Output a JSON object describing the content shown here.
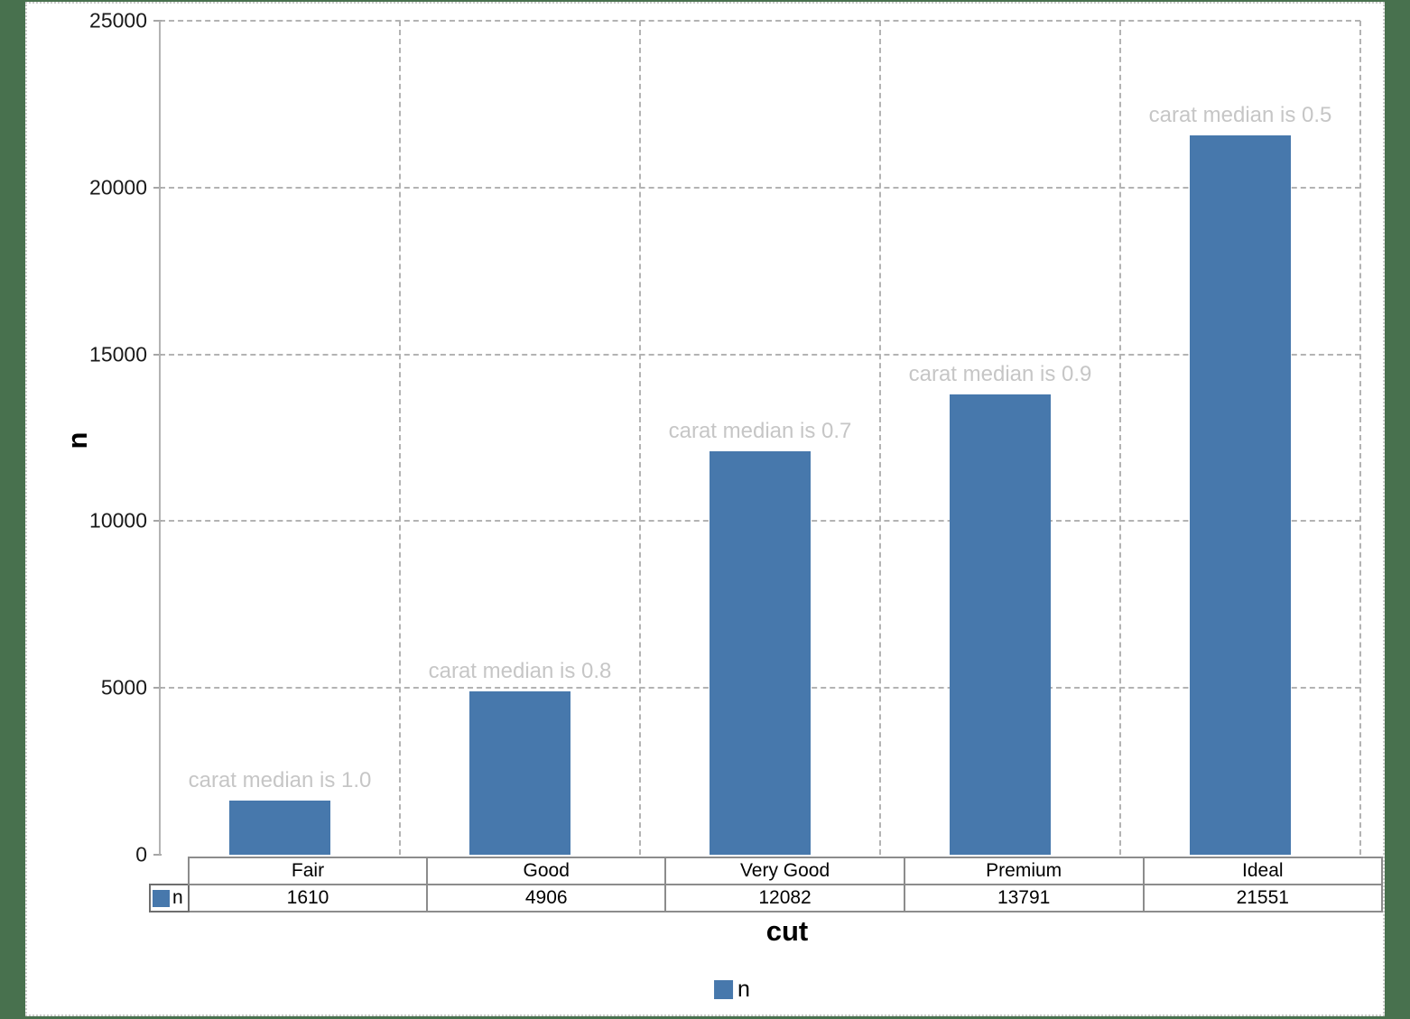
{
  "chart_data": {
    "type": "bar",
    "categories": [
      "Fair",
      "Good",
      "Very Good",
      "Premium",
      "Ideal"
    ],
    "values": [
      1610,
      4906,
      12082,
      13791,
      21551
    ],
    "annotations": [
      "carat median is 1.0",
      "carat median is 0.8",
      "carat median is 0.7",
      "carat median is 0.9",
      "carat median is 0.5"
    ],
    "series_name": "n",
    "title": "",
    "xlabel": "cut",
    "ylabel": "n",
    "ylim": [
      0,
      25000
    ],
    "y_ticks": [
      25000,
      20000,
      15000,
      10000,
      5000,
      0
    ],
    "grid": "dashed",
    "legend_position": "bottom",
    "bar_color": "#4778ac",
    "annotation_color": "#c6c6c6",
    "data_table": {
      "row_header": "n",
      "row_values": [
        "1610",
        "4906",
        "12082",
        "13791",
        "21551"
      ]
    }
  },
  "colors": {
    "background": "#48714e",
    "chart_background": "#ffffff",
    "gridline": "#b3b3b3",
    "table_border": "#8c8c8c"
  }
}
